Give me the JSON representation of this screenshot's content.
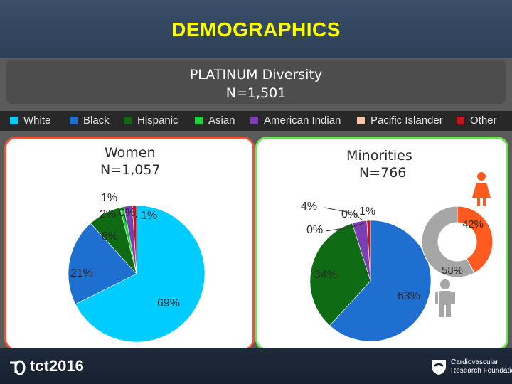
{
  "header": {
    "title": "DEMOGRAPHICS"
  },
  "subtitle": {
    "line1": "PLATINUM Diversity",
    "line2": "N=1,501"
  },
  "legend": [
    {
      "label": "White",
      "color": "#00ccff"
    },
    {
      "label": "Black",
      "color": "#1f6fd0"
    },
    {
      "label": "Hispanic",
      "color": "#0f6b14"
    },
    {
      "label": "Asian",
      "color": "#1fd43a"
    },
    {
      "label": "American Indian",
      "color": "#7a3fb0"
    },
    {
      "label": "Pacific Islander",
      "color": "#f6c6a8"
    },
    {
      "label": "Other",
      "color": "#c8141e"
    }
  ],
  "icons": [
    "female-person-icon",
    "male-person-icon",
    "tct-logo",
    "crf-logo"
  ],
  "footer": {
    "tct_logo_text": "tct2016",
    "crf_line1": "Cardiovascular",
    "crf_line2": "Research Foundation"
  },
  "chart_data": [
    {
      "type": "pie",
      "title": "Women",
      "subtitle": "N=1,057",
      "categories": [
        "White",
        "Black",
        "Hispanic",
        "Asian",
        "American Indian",
        "Pacific Islander",
        "Other"
      ],
      "values": [
        69,
        21,
        8,
        1,
        2,
        0,
        1
      ],
      "data_labels": [
        "69%",
        "21%",
        "8%",
        "1%",
        "2%",
        "0%",
        "1%"
      ]
    },
    {
      "type": "pie",
      "title": "Minorities",
      "subtitle": "N=766",
      "categories": [
        "Black",
        "Hispanic",
        "Asian",
        "American Indian",
        "Pacific Islander",
        "Other"
      ],
      "values": [
        63,
        34,
        0,
        4,
        0,
        1
      ],
      "data_labels": [
        "63%",
        "34%",
        "0%",
        "4%",
        "0%",
        "1%"
      ]
    },
    {
      "type": "pie",
      "subtype": "donut",
      "categories": [
        "Female",
        "Male"
      ],
      "values": [
        42,
        58
      ],
      "data_labels": [
        "42%",
        "58%"
      ],
      "colors": {
        "Female": "#ff5a1f",
        "Male": "#a6a6a6"
      }
    }
  ]
}
